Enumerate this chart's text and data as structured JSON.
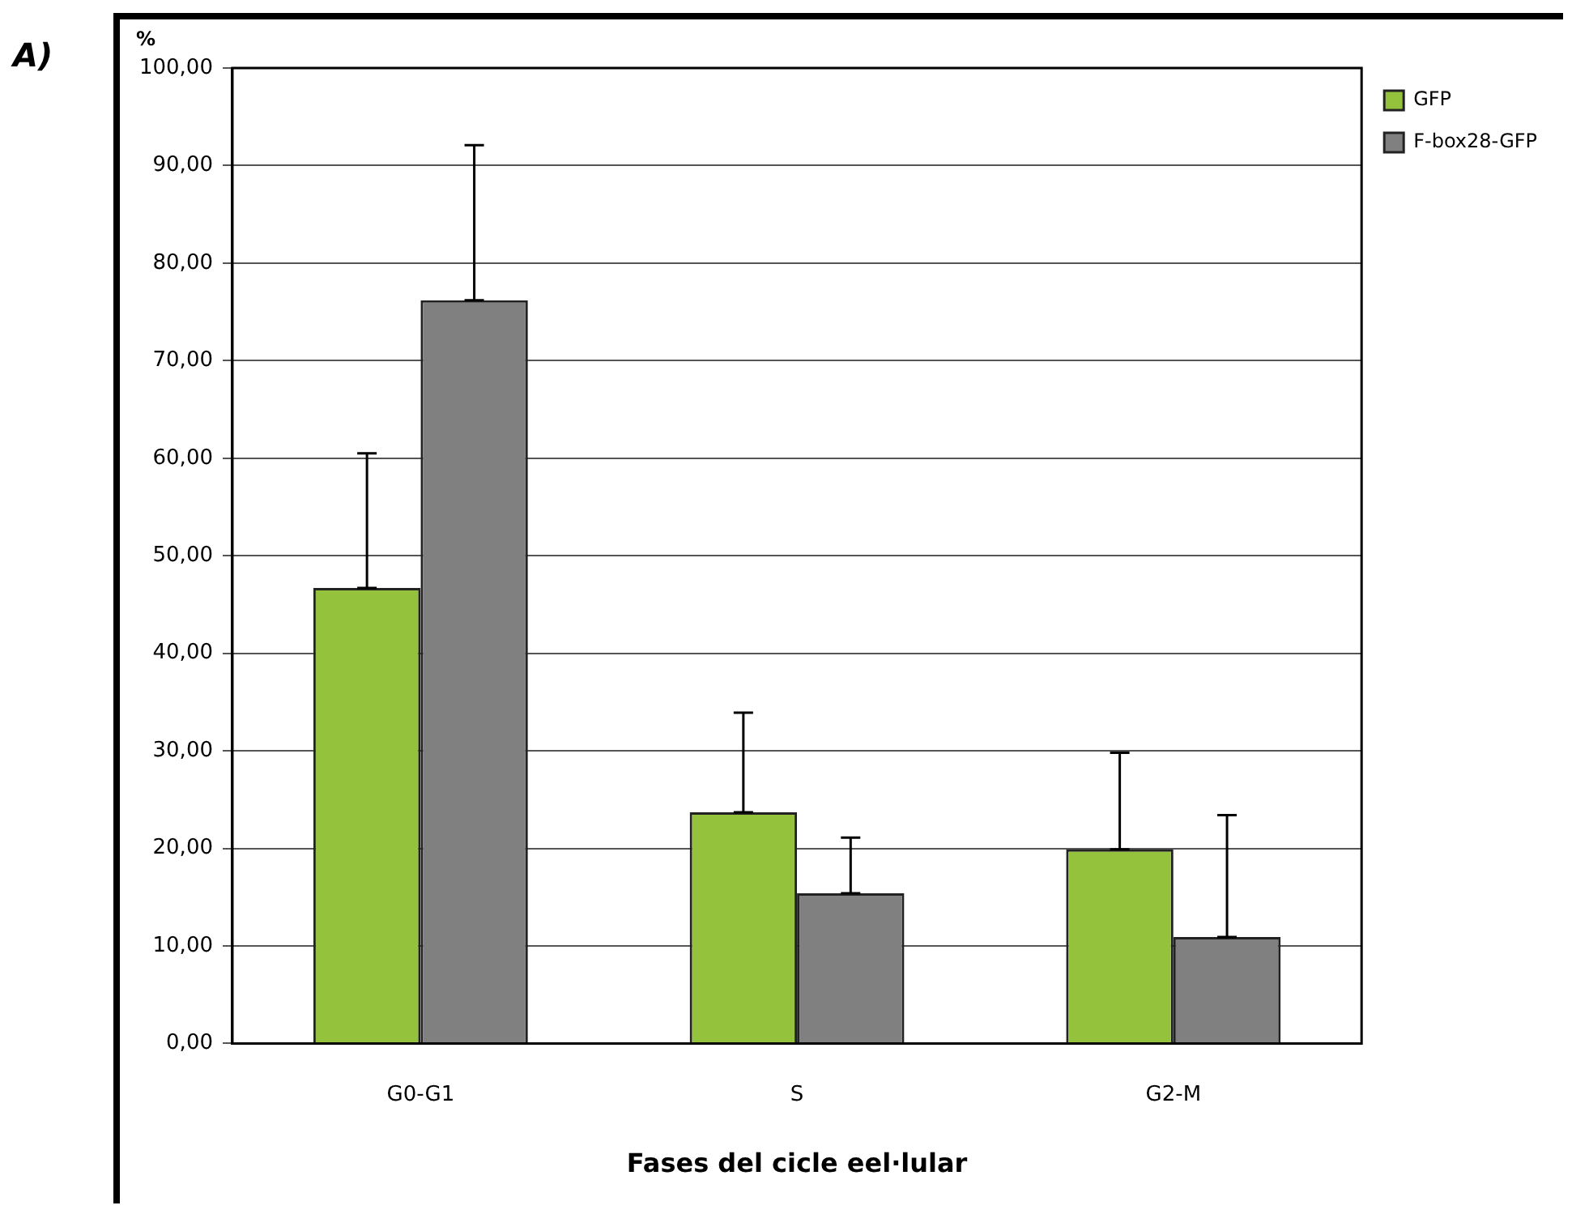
{
  "chart_data": {
    "type": "bar",
    "ylabel": "%",
    "xlabel": "Fases del cicle eel·lular",
    "annotations": [
      "A)"
    ],
    "categories": [
      "G0-G1",
      "S",
      "G2-M"
    ],
    "series": [
      {
        "name": "GFP",
        "color": "#95c23d",
        "values": [
          46.7,
          23.7,
          19.9
        ],
        "errors": [
          [
            46.7,
            60.5
          ],
          [
            23.7,
            33.9
          ],
          [
            19.9,
            29.8
          ]
        ]
      },
      {
        "name": "F-box28-GFP",
        "color": "#808080",
        "values": [
          76.2,
          15.4,
          10.9
        ],
        "errors": [
          [
            76.2,
            92.1
          ],
          [
            15.4,
            21.1
          ],
          [
            10.9,
            23.4
          ]
        ]
      }
    ],
    "ylim": [
      0,
      100
    ],
    "yticks": [
      {
        "value": 0,
        "label": "0,00"
      },
      {
        "value": 10,
        "label": "10,00"
      },
      {
        "value": 20,
        "label": "20,00"
      },
      {
        "value": 30,
        "label": "30,00"
      },
      {
        "value": 40,
        "label": "40,00"
      },
      {
        "value": 50,
        "label": "50,00"
      },
      {
        "value": 60,
        "label": "60,00"
      },
      {
        "value": 70,
        "label": "70,00"
      },
      {
        "value": 80,
        "label": "80,00"
      },
      {
        "value": 90,
        "label": "90,00"
      },
      {
        "value": 100,
        "label": "100,00"
      }
    ],
    "grid": "y",
    "legend": "top right"
  }
}
